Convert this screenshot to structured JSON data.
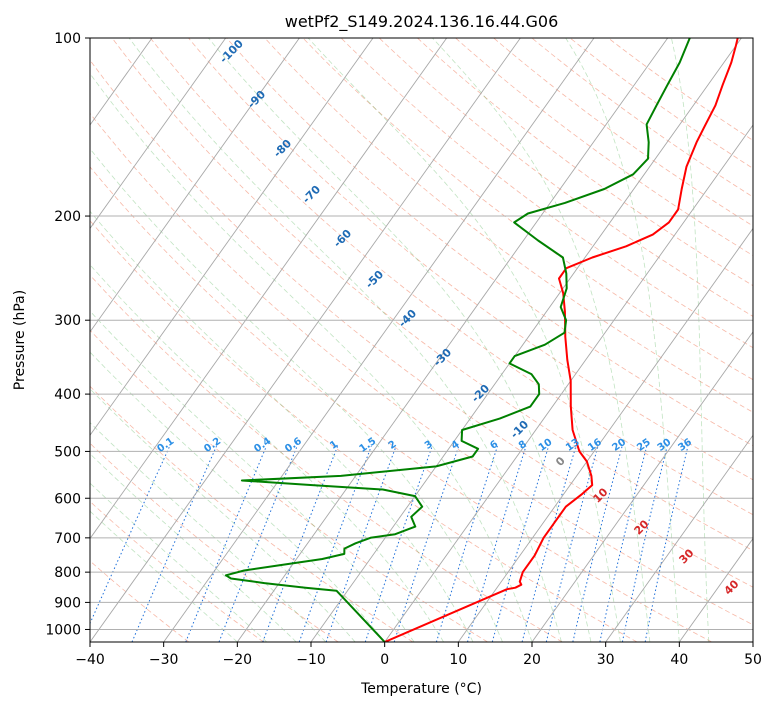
{
  "chart_data": {
    "type": "skew-t",
    "title": "wetPf2_S149.2024.136.16.44.G06",
    "xlabel": "Temperature (°C)",
    "ylabel": "Pressure (hPa)",
    "xlim": [
      -40,
      50
    ],
    "ylim": [
      1050,
      100
    ],
    "y_scale": "log",
    "grid": true,
    "xticks": [
      -40,
      -30,
      -20,
      -10,
      0,
      10,
      20,
      30,
      40,
      50
    ],
    "yticks": [
      100,
      200,
      300,
      400,
      500,
      600,
      700,
      800,
      900,
      1000
    ],
    "series": [
      {
        "color": "#ff0000",
        "points": [
          [
            1050,
            0
          ],
          [
            855,
            11.5
          ],
          [
            850,
            12.5
          ],
          [
            840,
            13.0
          ],
          [
            830,
            12.5
          ],
          [
            800,
            12.0
          ],
          [
            750,
            12.0
          ],
          [
            700,
            11.5
          ],
          [
            660,
            11.5
          ],
          [
            620,
            11.5
          ],
          [
            590,
            12.5
          ],
          [
            570,
            13.0
          ],
          [
            550,
            12.0
          ],
          [
            520,
            10.0
          ],
          [
            500,
            8.0
          ],
          [
            460,
            5.0
          ],
          [
            420,
            2.5
          ],
          [
            380,
            0.0
          ],
          [
            350,
            -2.5
          ],
          [
            320,
            -5.0
          ],
          [
            290,
            -7.5
          ],
          [
            270,
            -9.5
          ],
          [
            255,
            -11.5
          ],
          [
            245,
            -11.5
          ],
          [
            235,
            -9.0
          ],
          [
            225,
            -5.5
          ],
          [
            215,
            -3.0
          ],
          [
            205,
            -2.0
          ],
          [
            195,
            -2.0
          ],
          [
            180,
            -3.5
          ],
          [
            165,
            -5.0
          ],
          [
            150,
            -6.0
          ],
          [
            140,
            -6.5
          ],
          [
            130,
            -7.0
          ],
          [
            120,
            -8.0
          ],
          [
            110,
            -9.0
          ],
          [
            103,
            -10.0
          ],
          [
            100,
            -10.5
          ]
        ]
      },
      {
        "color": "#008000",
        "points": [
          [
            1050,
            0
          ],
          [
            860,
            -11.5
          ],
          [
            850,
            -16.0
          ],
          [
            835,
            -22.0
          ],
          [
            820,
            -27.0
          ],
          [
            810,
            -28.0
          ],
          [
            795,
            -26.0
          ],
          [
            780,
            -22.0
          ],
          [
            760,
            -16.5
          ],
          [
            745,
            -14.0
          ],
          [
            730,
            -14.5
          ],
          [
            715,
            -13.5
          ],
          [
            700,
            -12.0
          ],
          [
            690,
            -9.0
          ],
          [
            670,
            -7.0
          ],
          [
            645,
            -8.5
          ],
          [
            620,
            -8.0
          ],
          [
            595,
            -10.0
          ],
          [
            580,
            -15.0
          ],
          [
            570,
            -25.0
          ],
          [
            560,
            -35.0
          ],
          [
            550,
            -22.0
          ],
          [
            530,
            -10.0
          ],
          [
            510,
            -6.0
          ],
          [
            495,
            -6.0
          ],
          [
            480,
            -9.0
          ],
          [
            460,
            -10.0
          ],
          [
            440,
            -6.0
          ],
          [
            420,
            -3.0
          ],
          [
            400,
            -3.0
          ],
          [
            385,
            -4.0
          ],
          [
            370,
            -6.0
          ],
          [
            355,
            -10.0
          ],
          [
            345,
            -10.0
          ],
          [
            330,
            -7.0
          ],
          [
            315,
            -5.5
          ],
          [
            300,
            -6.5
          ],
          [
            285,
            -8.5
          ],
          [
            265,
            -9.5
          ],
          [
            250,
            -11.0
          ],
          [
            235,
            -13.0
          ],
          [
            220,
            -18.0
          ],
          [
            205,
            -23.0
          ],
          [
            198,
            -22.0
          ],
          [
            190,
            -18.0
          ],
          [
            180,
            -14.0
          ],
          [
            170,
            -11.5
          ],
          [
            160,
            -11.0
          ],
          [
            150,
            -12.5
          ],
          [
            140,
            -14.5
          ],
          [
            130,
            -15.0
          ],
          [
            120,
            -15.5
          ],
          [
            110,
            -16.0
          ],
          [
            100,
            -17.0
          ]
        ]
      }
    ],
    "dry_adiabat_labels": [
      -100,
      -90,
      -80,
      -70,
      -60,
      -50,
      -40,
      -30,
      -20,
      -10,
      0,
      10,
      20,
      30,
      40
    ],
    "mixing_ratio_labels": [
      "0.1",
      "0.2",
      "0.4",
      "0.6",
      "1",
      "1.5",
      "2",
      "3",
      "4",
      "6",
      "8",
      "10",
      "13",
      "16",
      "20",
      "25",
      "30",
      "36"
    ]
  }
}
